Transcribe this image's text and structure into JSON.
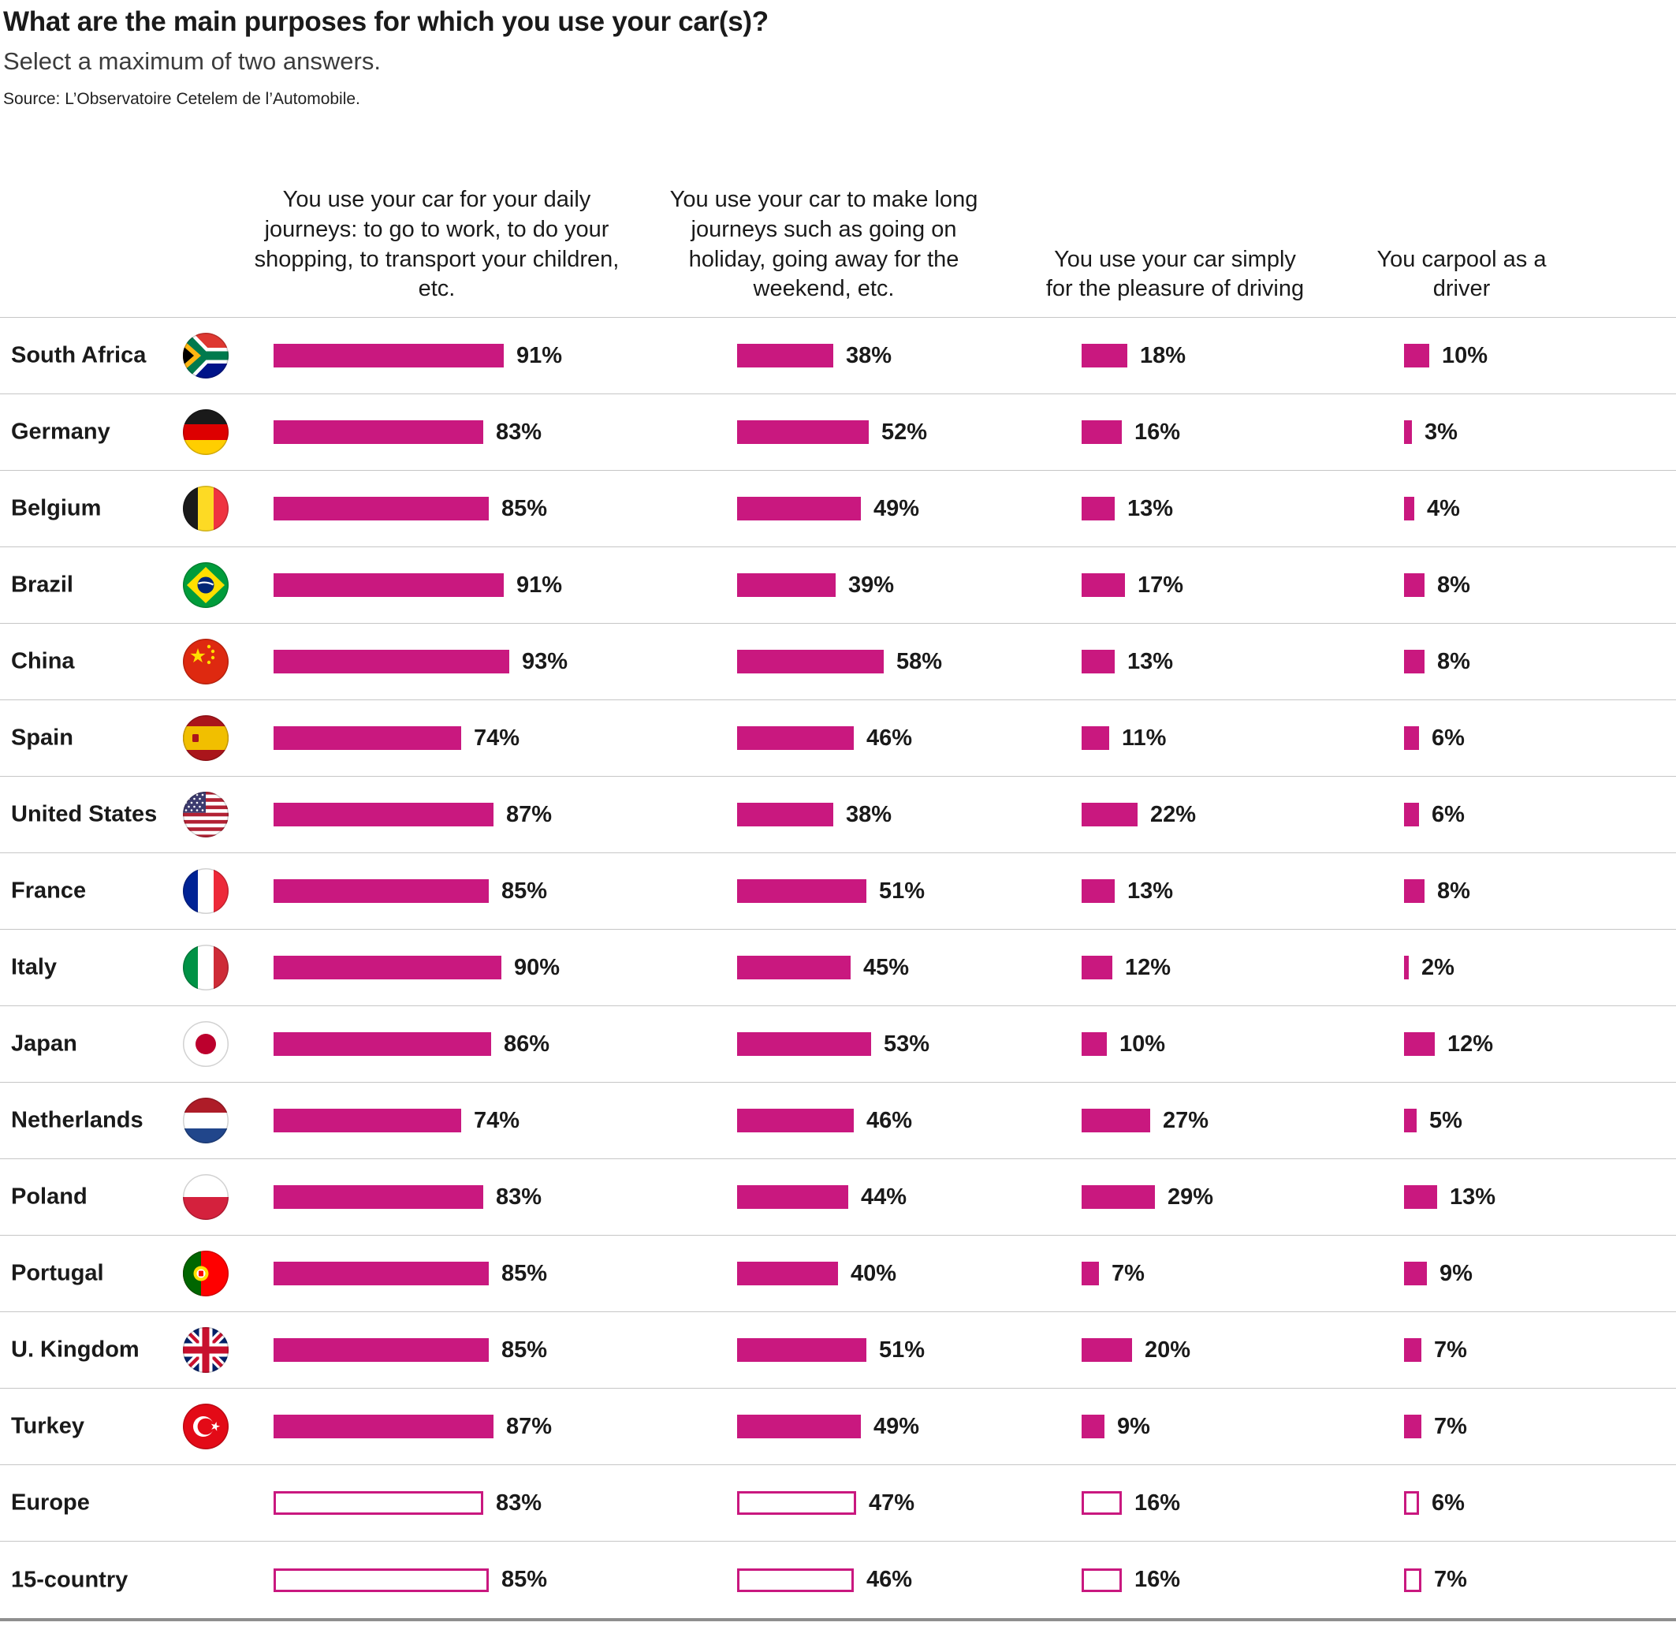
{
  "title": "What are the main purposes for which you use your car(s)?",
  "subtitle": "Select a maximum of two answers.",
  "source": "Source: L’Observatoire Cetelem de l’Automobile.",
  "accent_color": "#C9187F",
  "chart_data": {
    "type": "bar",
    "orientation": "horizontal",
    "unit": "%",
    "value_range": [
      0,
      100
    ],
    "grid": false,
    "legend_position": "column-headers",
    "title": "What are the main purposes for which you use your car(s)?",
    "categories": [
      "South Africa",
      "Germany",
      "Belgium",
      "Brazil",
      "China",
      "Spain",
      "United States",
      "France",
      "Italy",
      "Japan",
      "Netherlands",
      "Poland",
      "Portugal",
      "U. Kingdom",
      "Turkey",
      "Europe",
      "15-country"
    ],
    "category_flags": [
      "south-africa",
      "germany",
      "belgium",
      "brazil",
      "china",
      "spain",
      "united-states",
      "france",
      "italy",
      "japan",
      "netherlands",
      "poland",
      "portugal",
      "united-kingdom",
      "turkey",
      null,
      null
    ],
    "category_style": [
      "solid",
      "solid",
      "solid",
      "solid",
      "solid",
      "solid",
      "solid",
      "solid",
      "solid",
      "solid",
      "solid",
      "solid",
      "solid",
      "solid",
      "solid",
      "outline",
      "outline"
    ],
    "series": [
      {
        "name": "You use your car for your daily journeys: to go to work, to do your shopping, to transport your children, etc.",
        "values": [
          91,
          83,
          85,
          91,
          93,
          74,
          87,
          85,
          90,
          86,
          74,
          83,
          85,
          85,
          87,
          83,
          85
        ]
      },
      {
        "name": "You use your car to make long journeys such as going on holiday, going away for the weekend, etc.",
        "values": [
          38,
          52,
          49,
          39,
          58,
          46,
          38,
          51,
          45,
          53,
          46,
          44,
          40,
          51,
          49,
          47,
          46
        ]
      },
      {
        "name": "You use your car simply for the pleasure of driving",
        "values": [
          18,
          16,
          13,
          17,
          13,
          11,
          22,
          13,
          12,
          10,
          27,
          29,
          7,
          20,
          9,
          16,
          16
        ]
      },
      {
        "name": "You carpool as a driver",
        "values": [
          10,
          3,
          4,
          8,
          8,
          6,
          6,
          8,
          2,
          12,
          5,
          13,
          9,
          7,
          7,
          6,
          7
        ]
      }
    ]
  }
}
